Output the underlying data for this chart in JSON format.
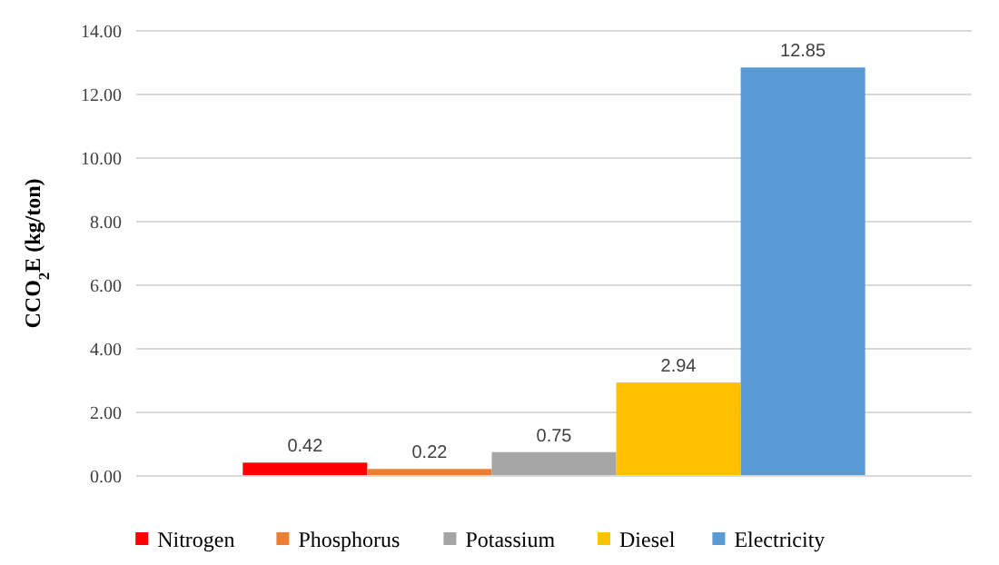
{
  "chart_data": {
    "type": "bar",
    "ylabel": "CCO$_{2}$E (kg/ton)",
    "categories": [
      null
    ],
    "series": [
      {
        "name": "Nitrogen",
        "color": "#ff0000",
        "values": [
          0.42
        ]
      },
      {
        "name": "Phosphorus",
        "color": "#ed7d31",
        "values": [
          0.22
        ]
      },
      {
        "name": "Potassium",
        "color": "#a5a5a5",
        "values": [
          0.75
        ]
      },
      {
        "name": "Diesel",
        "color": "#ffc000",
        "values": [
          2.94
        ]
      },
      {
        "name": "Electricity",
        "color": "#5b9bd5",
        "values": [
          12.85
        ]
      }
    ],
    "ylim": [
      0,
      14
    ],
    "yticks": [
      {
        "value": 0,
        "label": "0.00"
      },
      {
        "value": 2,
        "label": "2.00"
      },
      {
        "value": 4,
        "label": "4.00"
      },
      {
        "value": 6,
        "label": "6.00"
      },
      {
        "value": 8,
        "label": "8.00"
      },
      {
        "value": 10,
        "label": "10.00"
      },
      {
        "value": 12,
        "label": "12.00"
      },
      {
        "value": 14,
        "label": "14.00"
      }
    ],
    "grid": "y",
    "legend": "bottom",
    "data_labels": true
  }
}
